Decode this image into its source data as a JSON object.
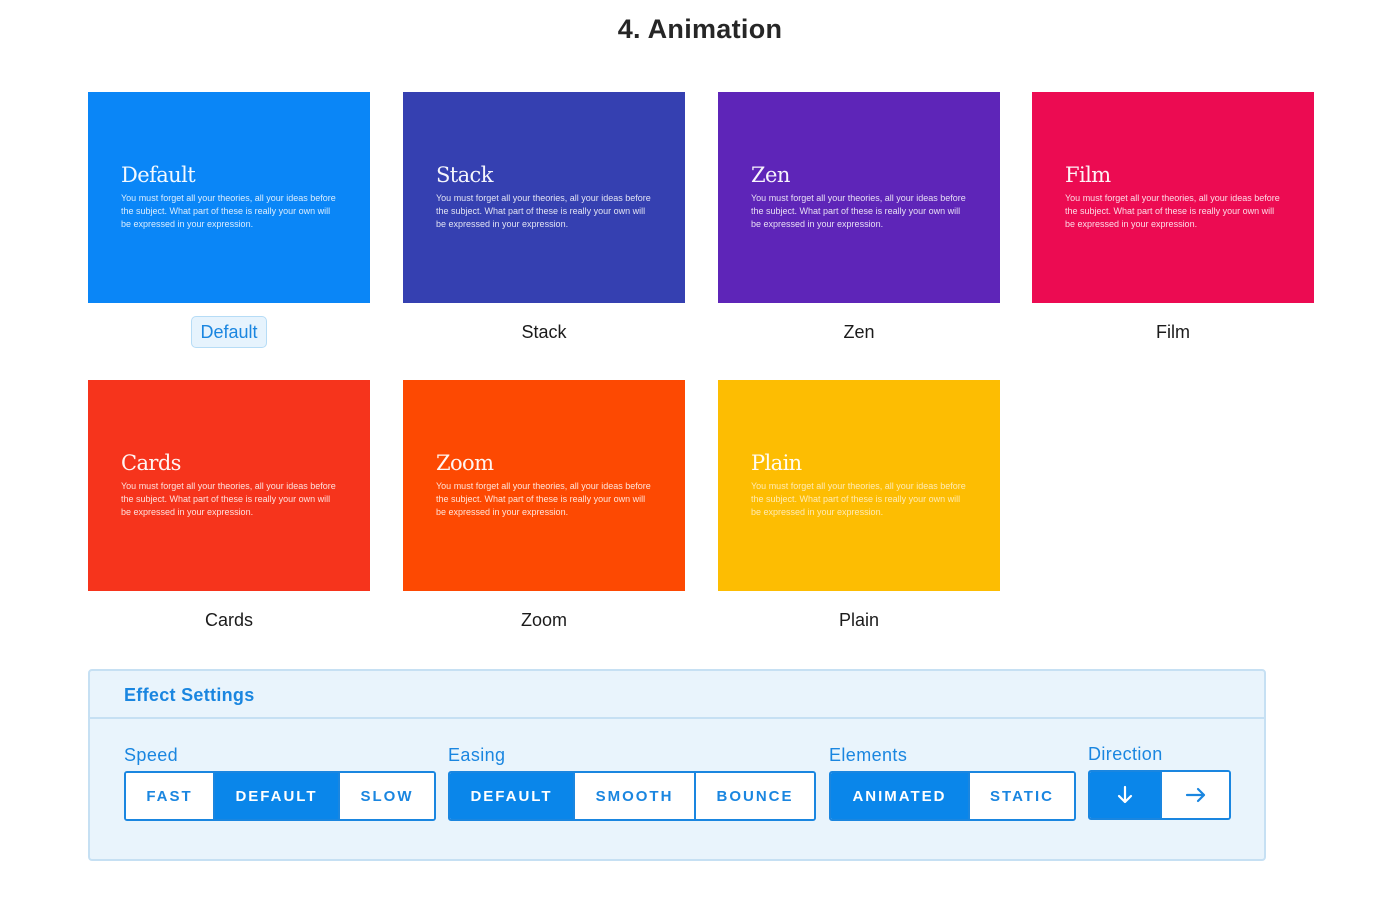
{
  "page": {
    "title": "4. Animation"
  },
  "sample_text": "You must forget all your theories, all your ideas before the subject. What part of these is really your own will be expressed in your expression.",
  "animations": [
    {
      "name": "Default",
      "color": "#0a86f7",
      "selected": true
    },
    {
      "name": "Stack",
      "color": "#3540b1",
      "selected": false
    },
    {
      "name": "Zen",
      "color": "#5e25b8",
      "selected": false
    },
    {
      "name": "Film",
      "color": "#ec0b52",
      "selected": false
    },
    {
      "name": "Cards",
      "color": "#f6341c",
      "selected": false
    },
    {
      "name": "Zoom",
      "color": "#fd4902",
      "selected": false
    },
    {
      "name": "Plain",
      "color": "#fdbd02",
      "selected": false
    }
  ],
  "settings": {
    "title": "Effect Settings",
    "speed": {
      "label": "Speed",
      "options": [
        "FAST",
        "DEFAULT",
        "SLOW"
      ],
      "selected": "DEFAULT"
    },
    "easing": {
      "label": "Easing",
      "options": [
        "DEFAULT",
        "SMOOTH",
        "BOUNCE"
      ],
      "selected": "DEFAULT"
    },
    "elements": {
      "label": "Elements",
      "options": [
        "ANIMATED",
        "STATIC"
      ],
      "selected": "ANIMATED"
    },
    "direction": {
      "label": "Direction",
      "options": [
        "arrow-down-icon",
        "arrow-right-icon"
      ],
      "selected": "arrow-down-icon"
    }
  }
}
